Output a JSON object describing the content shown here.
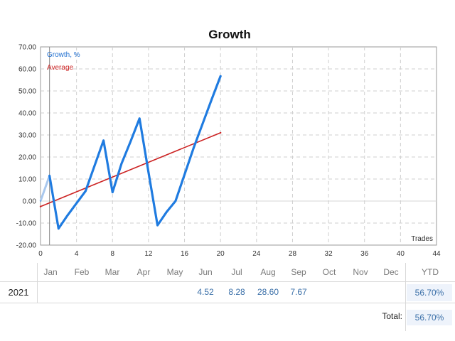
{
  "chart_data": {
    "type": "line",
    "title": "Growth",
    "xlabel": "Trades",
    "ylabel": "",
    "xlim": [
      0,
      44
    ],
    "ylim": [
      -20,
      70
    ],
    "x_ticks": [
      "0",
      "4",
      "8",
      "12",
      "16",
      "20",
      "24",
      "28",
      "32",
      "36",
      "40",
      "44"
    ],
    "y_ticks": [
      "70.00",
      "60.00",
      "50.00",
      "40.00",
      "30.00",
      "20.00",
      "10.00",
      "0.00",
      "-10.00",
      "-20.00"
    ],
    "grid": true,
    "legend_position": "top-left",
    "series": [
      {
        "name": "Growth, %",
        "color": "#1f7be0",
        "x": [
          0,
          1,
          2,
          3,
          4,
          5,
          6,
          7,
          8,
          9,
          10,
          11,
          12,
          13,
          14,
          15,
          16,
          17,
          18,
          19,
          20
        ],
        "y": [
          0,
          11.5,
          -12.5,
          -6.5,
          -1,
          4.5,
          16,
          27.5,
          4,
          17,
          27,
          37.5,
          13,
          -11,
          -5,
          0,
          12,
          24,
          35,
          46,
          56.7
        ],
        "pre_start_color": "#a9c8ee",
        "pre_start_until_x": 1
      },
      {
        "name": "Average",
        "color": "#cc2222",
        "x": [
          0,
          20
        ],
        "y": [
          -2.5,
          31
        ]
      }
    ],
    "marker_line_x": 1
  },
  "table": {
    "months": [
      "Jan",
      "Feb",
      "Mar",
      "Apr",
      "May",
      "Jun",
      "Jul",
      "Aug",
      "Sep",
      "Oct",
      "Nov",
      "Dec"
    ],
    "ytd_label": "YTD",
    "rows": [
      {
        "year": "2021",
        "values": [
          "",
          "",
          "",
          "",
          "",
          "4.52",
          "8.28",
          "28.60",
          "7.67",
          "",
          "",
          ""
        ],
        "ytd": "56.70%"
      }
    ],
    "total_label": "Total:",
    "total_value": "56.70%"
  }
}
